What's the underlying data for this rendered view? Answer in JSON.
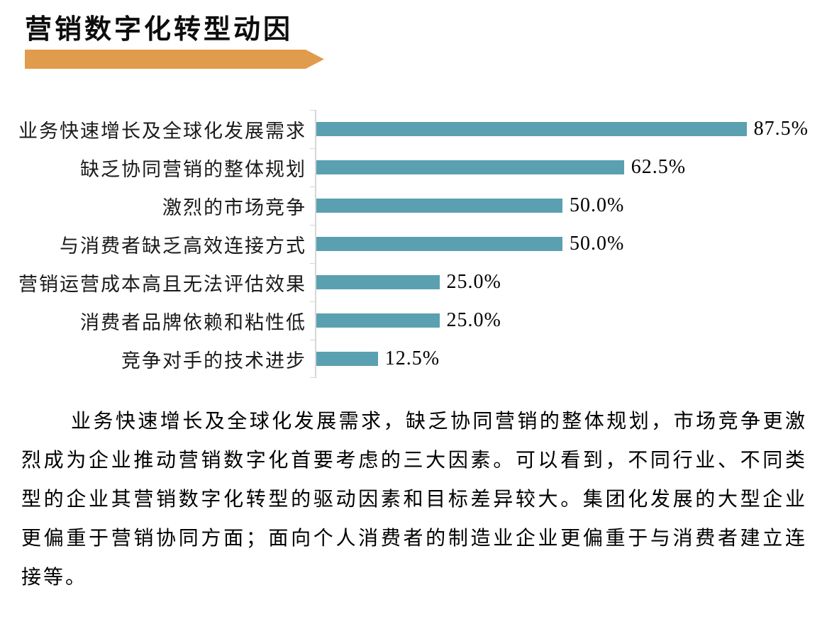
{
  "title": "营销数字化转型动因",
  "colors": {
    "accent_orange": "#E19B4C",
    "bar_teal": "#5AA0B0",
    "axis_gray": "#D6D6D6"
  },
  "chart_data": {
    "type": "bar",
    "orientation": "horizontal",
    "title": "营销数字化转型动因",
    "categories": [
      "业务快速增长及全球化发展需求",
      "缺乏协同营销的整体规划",
      "激烈的市场竞争",
      "与消费者缺乏高效连接方式",
      "营销运营成本高且无法评估效果",
      "消费者品牌依赖和粘性低",
      "竞争对手的技术进步"
    ],
    "values": [
      87.5,
      62.5,
      50.0,
      50.0,
      25.0,
      25.0,
      12.5
    ],
    "value_labels": [
      "87.5%",
      "62.5%",
      "50.0%",
      "50.0%",
      "25.0%",
      "25.0%",
      "12.5%"
    ],
    "unit": "%",
    "xlim": [
      0,
      100
    ],
    "grid": false,
    "legend": null,
    "xlabel": "",
    "ylabel": ""
  },
  "paragraph": "业务快速增长及全球化发展需求，缺乏协同营销的整体规划，市场竞争更激烈成为企业推动营销数字化首要考虑的三大因素。可以看到，不同行业、不同类型的企业其营销数字化转型的驱动因素和目标差异较大。集团化发展的大型企业更偏重于营销协同方面；面向个人消费者的制造业企业更偏重于与消费者建立连接等。"
}
